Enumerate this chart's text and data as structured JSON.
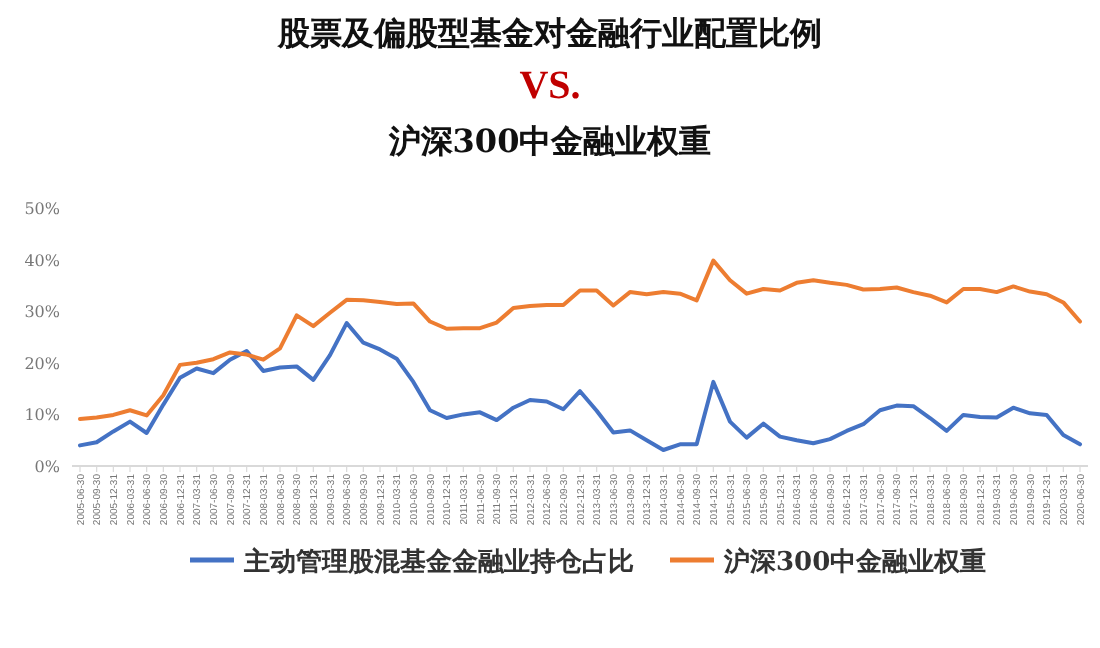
{
  "chart_data": {
    "type": "line",
    "title": "股票及偏股型基金对金融行业配置比例\nVS.\n沪深300中金融业权重",
    "categories": [
      "2005-06-30",
      "2005-09-30",
      "2005-12-31",
      "2006-03-31",
      "2006-06-30",
      "2006-09-30",
      "2006-12-31",
      "2007-03-31",
      "2007-06-30",
      "2007-09-30",
      "2007-12-31",
      "2008-03-31",
      "2008-06-30",
      "2008-09-30",
      "2008-12-31",
      "2009-03-31",
      "2009-06-30",
      "2009-09-30",
      "2009-12-31",
      "2010-03-31",
      "2010-06-30",
      "2010-09-30",
      "2010-12-31",
      "2011-03-31",
      "2011-06-30",
      "2011-09-30",
      "2011-12-31",
      "2012-03-31",
      "2012-06-30",
      "2012-09-30",
      "2012-12-31",
      "2013-03-31",
      "2013-06-30",
      "2013-09-30",
      "2013-12-31",
      "2014-03-31",
      "2014-06-30",
      "2014-09-30",
      "2014-12-31",
      "2015-03-31",
      "2015-06-30",
      "2015-09-30",
      "2015-12-31",
      "2016-03-31",
      "2016-06-30",
      "2016-09-30",
      "2016-12-31",
      "2017-03-31",
      "2017-06-30",
      "2017-09-30",
      "2017-12-31",
      "2018-03-31",
      "2018-06-30",
      "2018-09-30",
      "2018-12-31",
      "2019-03-31",
      "2019-06-30",
      "2019-09-30",
      "2019-12-31",
      "2020-03-31",
      "2020-06-30"
    ],
    "series": [
      {
        "name": "主动管理股混基金金融业持仓占比",
        "color": "#4472c4",
        "values": [
          4.0,
          4.6,
          6.7,
          8.6,
          6.4,
          11.9,
          17.1,
          18.9,
          18.0,
          20.6,
          22.3,
          18.4,
          19.1,
          19.3,
          16.7,
          21.5,
          27.7,
          23.9,
          22.6,
          20.8,
          16.3,
          10.8,
          9.3,
          10.0,
          10.4,
          8.9,
          11.3,
          12.8,
          12.5,
          11.0,
          14.5,
          10.7,
          6.5,
          6.9,
          5.0,
          3.1,
          4.2,
          4.2,
          16.3,
          8.6,
          5.5,
          8.2,
          5.7,
          5.0,
          4.4,
          5.2,
          6.8,
          8.1,
          10.8,
          11.7,
          11.6,
          9.3,
          6.8,
          9.9,
          9.5,
          9.4,
          11.3,
          10.2,
          9.9,
          6.0,
          4.2
        ]
      },
      {
        "name": "沪深300中金融业权重",
        "color": "#ed7d31",
        "values": [
          9.1,
          9.4,
          9.9,
          10.8,
          9.8,
          13.7,
          19.6,
          20.0,
          20.7,
          22.0,
          21.6,
          20.6,
          22.8,
          29.2,
          27.1,
          29.7,
          32.2,
          32.1,
          31.8,
          31.4,
          31.5,
          28.0,
          26.6,
          26.7,
          26.7,
          27.8,
          30.6,
          31.0,
          31.2,
          31.2,
          34.0,
          34.0,
          31.1,
          33.7,
          33.3,
          33.7,
          33.4,
          32.1,
          39.8,
          36.0,
          33.4,
          34.3,
          34.0,
          35.5,
          36.0,
          35.5,
          35.1,
          34.2,
          34.3,
          34.6,
          33.7,
          33.0,
          31.7,
          34.3,
          34.3,
          33.7,
          34.8,
          33.8,
          33.3,
          31.7,
          28.0
        ]
      }
    ],
    "ylim": [
      0,
      50
    ],
    "yticks": [
      {
        "value": 0,
        "label": "0%"
      },
      {
        "value": 10,
        "label": "10%"
      },
      {
        "value": 20,
        "label": "20%"
      },
      {
        "value": 30,
        "label": "30%"
      },
      {
        "value": 40,
        "label": "40%"
      },
      {
        "value": 50,
        "label": "50%"
      }
    ],
    "legend": "bottom"
  }
}
